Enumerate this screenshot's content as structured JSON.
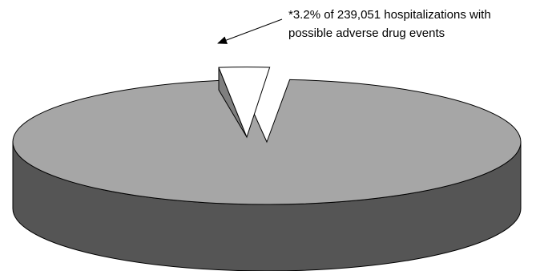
{
  "chart_data": {
    "type": "pie",
    "style": "3d-exploded",
    "slices": [
      {
        "label": "",
        "value": 96.8,
        "color": "#a6a6a6",
        "side_color": "#555555",
        "exploded": false
      },
      {
        "label": "",
        "value": 3.2,
        "color": "#ffffff",
        "side_color": "#7f7f7f",
        "exploded": true
      }
    ],
    "annotation": {
      "lines": [
        "*3.2% of 239,051 hospitalizations with",
        "possible adverse drug events"
      ],
      "points_to": "exploded-slice"
    },
    "title": "",
    "legend": "none"
  }
}
